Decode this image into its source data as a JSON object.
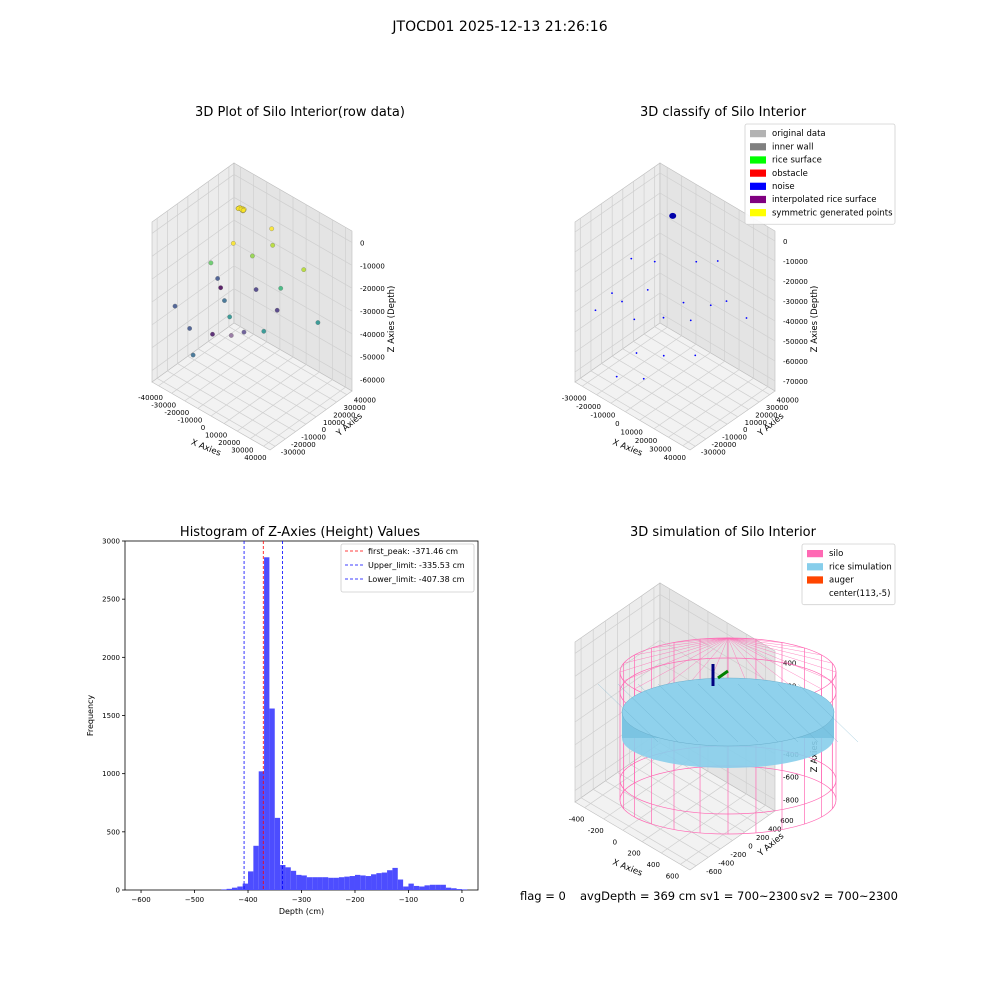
{
  "suptitle": "JTOCD01 2025-12-13 21:26:16",
  "chart_data": [
    {
      "panel": "raw",
      "type": "scatter",
      "projection": "3d",
      "title": "3D Plot of Silo Interior(row data)",
      "xlabel": "X Axies",
      "ylabel": "Y Axies",
      "zlabel": "Z Axies (Depth)",
      "x_ticks": [
        "-40000",
        "-30000",
        "-20000",
        "-10000",
        "0",
        "10000",
        "20000",
        "30000",
        "40000"
      ],
      "y_ticks": [
        "-30000",
        "-20000",
        "-10000",
        "0",
        "10000",
        "20000",
        "30000",
        "40000"
      ],
      "z_ticks": [
        "0",
        "-10000",
        "-20000",
        "-30000",
        "-40000",
        "-50000",
        "-60000"
      ],
      "grid": true,
      "colormap": "viridis"
    },
    {
      "panel": "classify",
      "type": "scatter",
      "projection": "3d",
      "title": "3D classify of Silo Interior",
      "xlabel": "X Axies",
      "ylabel": "Y Axies",
      "zlabel": "Z Axies (Depth)",
      "x_ticks": [
        "-30000",
        "-20000",
        "-10000",
        "0",
        "10000",
        "20000",
        "30000",
        "40000"
      ],
      "y_ticks": [
        "-30000",
        "-20000",
        "-10000",
        "0",
        "10000",
        "20000",
        "30000",
        "40000"
      ],
      "z_ticks": [
        "0",
        "-10000",
        "-20000",
        "-30000",
        "-40000",
        "-50000",
        "-60000",
        "-70000"
      ],
      "grid": true,
      "legend_position": "top-right",
      "legend": [
        {
          "label": "original data",
          "color": "#b3b3b3"
        },
        {
          "label": "inner wall",
          "color": "#808080"
        },
        {
          "label": "rice surface",
          "color": "#00ff00"
        },
        {
          "label": "obstacle",
          "color": "#ff0000"
        },
        {
          "label": "noise",
          "color": "#0000ff"
        },
        {
          "label": "interpolated rice surface",
          "color": "#800080"
        },
        {
          "label": "symmetric generated points",
          "color": "#ffff00"
        }
      ]
    },
    {
      "panel": "histogram",
      "type": "bar",
      "title": "Histogram of Z-Axies (Height) Values",
      "xlabel": "Depth (cm)",
      "ylabel": "Frequency",
      "xlim": [
        -630,
        30
      ],
      "ylim": [
        0,
        3000
      ],
      "x_ticks": [
        -600,
        -500,
        -400,
        -300,
        -200,
        -100,
        0
      ],
      "y_ticks": [
        0,
        500,
        1000,
        1500,
        2000,
        2500,
        3000
      ],
      "bar_color": "#4d4dff",
      "bin_width": 10,
      "bins": [
        [
          -450,
          5
        ],
        [
          -440,
          10
        ],
        [
          -430,
          20
        ],
        [
          -420,
          30
        ],
        [
          -410,
          55
        ],
        [
          -400,
          160
        ],
        [
          -390,
          380
        ],
        [
          -380,
          1020
        ],
        [
          -370,
          2860
        ],
        [
          -360,
          1560
        ],
        [
          -350,
          620
        ],
        [
          -340,
          215
        ],
        [
          -330,
          195
        ],
        [
          -320,
          165
        ],
        [
          -310,
          130
        ],
        [
          -300,
          125
        ],
        [
          -290,
          110
        ],
        [
          -280,
          110
        ],
        [
          -270,
          110
        ],
        [
          -260,
          110
        ],
        [
          -250,
          105
        ],
        [
          -240,
          105
        ],
        [
          -230,
          110
        ],
        [
          -220,
          115
        ],
        [
          -210,
          120
        ],
        [
          -200,
          130
        ],
        [
          -190,
          125
        ],
        [
          -180,
          120
        ],
        [
          -170,
          135
        ],
        [
          -160,
          145
        ],
        [
          -150,
          150
        ],
        [
          -140,
          170
        ],
        [
          -130,
          190
        ],
        [
          -120,
          90
        ],
        [
          -110,
          30
        ],
        [
          -100,
          55
        ],
        [
          -90,
          35
        ],
        [
          -80,
          30
        ],
        [
          -70,
          40
        ],
        [
          -60,
          45
        ],
        [
          -50,
          45
        ],
        [
          -40,
          45
        ],
        [
          -30,
          20
        ],
        [
          -20,
          15
        ],
        [
          -10,
          8
        ],
        [
          0,
          5
        ]
      ],
      "lines": [
        {
          "label": "first_peak: -371.46 cm",
          "x": -371.46,
          "color": "#ff0000"
        },
        {
          "label": "Upper_limit: -335.53 cm",
          "x": -335.53,
          "color": "#0000ff"
        },
        {
          "label": "Lower_limit: -407.38 cm",
          "x": -407.38,
          "color": "#0000ff"
        }
      ],
      "legend_position": "top-right"
    },
    {
      "panel": "simulation",
      "type": "3d-surface",
      "projection": "3d",
      "title": "3D simulation of Silo Interior",
      "xlabel": "X Axies",
      "ylabel": "Y Axies",
      "zlabel": "Z Axies (Depth)",
      "x_ticks": [
        "-400",
        "-200",
        "0",
        "200",
        "400",
        "600"
      ],
      "y_ticks": [
        "-600",
        "-400",
        "-200",
        "0",
        "200",
        "400",
        "600"
      ],
      "z_ticks": [
        "400",
        "200",
        "0",
        "-200",
        "-400",
        "-600",
        "-800"
      ],
      "grid": true,
      "legend_position": "top-right",
      "legend": [
        {
          "label": "silo",
          "color": "#ff69b4"
        },
        {
          "label": "rice simulation",
          "color": "#87ceeb"
        },
        {
          "label": "auger",
          "color": "#ff4500"
        },
        {
          "label": "center(113,-5)",
          "color": "none"
        }
      ]
    }
  ],
  "status_line": {
    "flag": "flag = 0",
    "avg_depth": "avgDepth = 369 cm",
    "sv1": "sv1 = 700~2300",
    "sv2": "sv2 = 700~2300"
  }
}
